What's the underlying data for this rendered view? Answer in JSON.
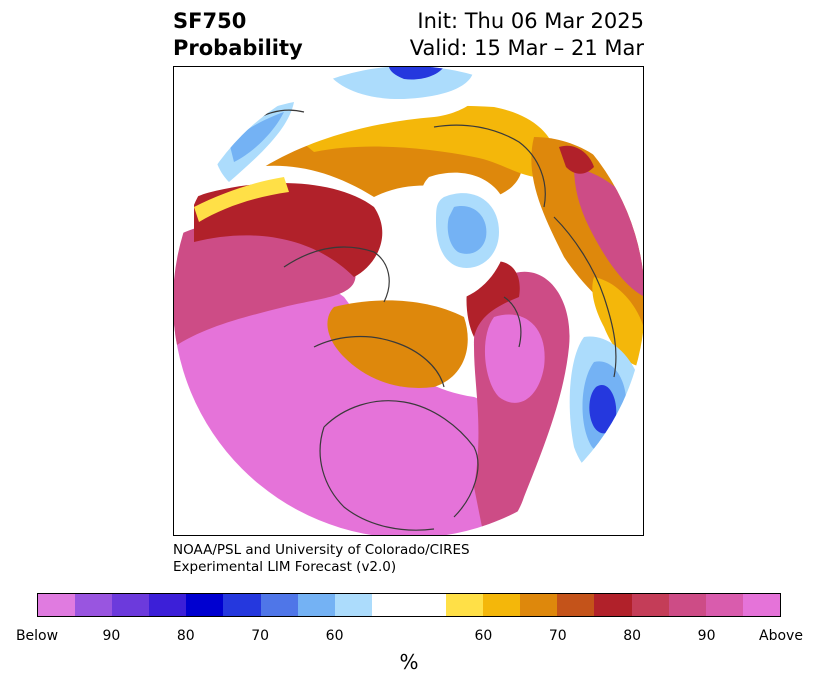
{
  "title": {
    "left_line1": "SF750",
    "left_line2": "Probability",
    "right_line1": "Init: Thu 06 Mar 2025",
    "right_line2": "Valid: 15 Mar – 21 Mar"
  },
  "credit": {
    "line1": "NOAA/PSL and University of Colorado/CIRES",
    "line2": "Experimental LIM Forecast (v2.0)"
  },
  "colorbar": {
    "unit_label": "%",
    "colors": [
      "#e07be0",
      "#9955e0",
      "#6c3adc",
      "#3c1fd8",
      "#0000d0",
      "#2538de",
      "#4f76e8",
      "#74b2f4",
      "#acdcfc",
      "#ffffff",
      "#ffe047",
      "#f4b70a",
      "#de880c",
      "#c4531a",
      "#b1212a",
      "#c43d58",
      "#cd4c86",
      "#d95cad",
      "#e573d9"
    ],
    "tick_labels": [
      "Below",
      "90",
      "80",
      "70",
      "60",
      "60",
      "70",
      "80",
      "90",
      "Above"
    ]
  },
  "map": {
    "projection": "north-polar-stereographic",
    "colors": {
      "above_high": "#e573d9",
      "above_mid": "#cd4c86",
      "above_70": "#b1212a",
      "above_60": "#de880c",
      "above_low": "#f4b70a",
      "above_min": "#ffe047",
      "below_low": "#acdcfc",
      "below_mid": "#74b2f4",
      "below_high": "#2538de",
      "coastline": "#3a3a3a"
    }
  }
}
